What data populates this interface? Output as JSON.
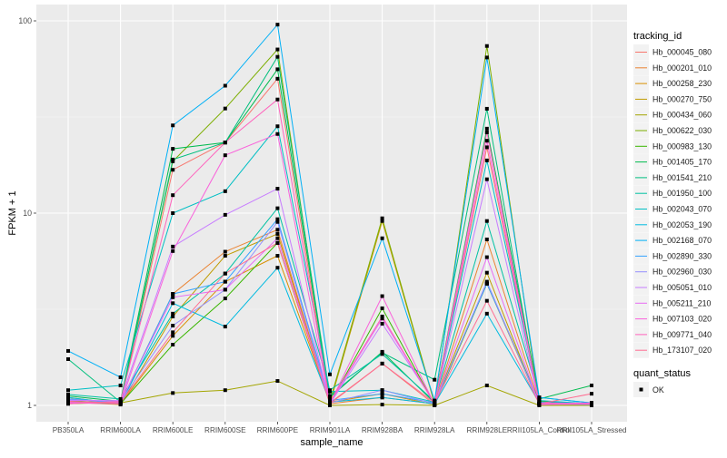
{
  "chart_data": {
    "type": "line",
    "xlabel": "sample_name",
    "ylabel": "FPKM + 1",
    "yscale": "log10",
    "ylim": [
      0.92,
      115
    ],
    "yticks": [
      1,
      10,
      100
    ],
    "ytick_labels": [
      "1",
      "10",
      "100"
    ],
    "grid": true,
    "legend_position": "right",
    "categories": [
      "PB350LA",
      "RRIM600LA",
      "RRIM600LE",
      "RRIM600SE",
      "RRIM600PE",
      "RRIM901LA",
      "RRIM928BA",
      "RRIM928LA",
      "RRIM928LE",
      "RRII105LA_Control",
      "RRII105LA_Stressed"
    ],
    "legend_title": "tracking_id",
    "series": [
      {
        "name": "Hb_000045_080",
        "color": "#F8766D",
        "values": [
          1.05,
          1.02,
          16.8,
          23.3,
          50,
          1.03,
          1.65,
          1.01,
          22,
          1.02,
          1.01
        ]
      },
      {
        "name": "Hb_000201_010",
        "color": "#EA8331",
        "values": [
          1.08,
          1.03,
          3.8,
          6.3,
          8.2,
          1.02,
          1.1,
          1.02,
          7.3,
          1.03,
          1.02
        ]
      },
      {
        "name": "Hb_000258_230",
        "color": "#D89000",
        "values": [
          1.1,
          1.02,
          2.3,
          4.4,
          6.0,
          1.04,
          1.15,
          1.01,
          4.3,
          1.02,
          1.01
        ]
      },
      {
        "name": "Hb_000270_750",
        "color": "#C09B00",
        "values": [
          1.04,
          1.01,
          2.9,
          6.0,
          7.8,
          1.02,
          9.1,
          1.02,
          4.9,
          1.01,
          1.02
        ]
      },
      {
        "name": "Hb_000434_060",
        "color": "#A3A500",
        "values": [
          1.05,
          1.03,
          1.16,
          1.2,
          1.34,
          1.0,
          1.01,
          1.0,
          1.27,
          1.0,
          1.0
        ]
      },
      {
        "name": "Hb_000622_030",
        "color": "#7CAE00",
        "values": [
          1.02,
          1.04,
          18.6,
          35,
          71,
          1.05,
          9.4,
          1.03,
          74,
          1.02,
          1.02
        ]
      },
      {
        "name": "Hb_000983_130",
        "color": "#39B600",
        "values": [
          1.06,
          1.02,
          2.07,
          3.6,
          7.0,
          1.02,
          3.2,
          1.01,
          4.3,
          1.05,
          1.02
        ]
      },
      {
        "name": "Hb_001405_170",
        "color": "#00BB4E",
        "values": [
          1.12,
          1.05,
          21.6,
          23.3,
          56,
          1.1,
          1.9,
          1.03,
          27.5,
          1.08,
          1.27
        ]
      },
      {
        "name": "Hb_001541_210",
        "color": "#00BF7D",
        "values": [
          1.74,
          1.04,
          19,
          23.3,
          65,
          1.12,
          1.88,
          1.36,
          34.9,
          1.02,
          1.02
        ]
      },
      {
        "name": "Hb_001950_100",
        "color": "#00C1A3",
        "values": [
          1.14,
          1.08,
          3.0,
          4.85,
          10.6,
          1.2,
          1.85,
          1.05,
          9.1,
          1.1,
          1.03
        ]
      },
      {
        "name": "Hb_002043_070",
        "color": "#00BFC4",
        "values": [
          1.2,
          1.27,
          10.0,
          13,
          28.3,
          1.18,
          1.2,
          1.04,
          18.8,
          1.06,
          1.02
        ]
      },
      {
        "name": "Hb_002053_190",
        "color": "#00BAE0",
        "values": [
          1.1,
          1.02,
          3.4,
          2.57,
          5.2,
          1.04,
          1.1,
          1.02,
          3.0,
          1.03,
          1.01
        ]
      },
      {
        "name": "Hb_002168_070",
        "color": "#00B0F6",
        "values": [
          1.92,
          1.4,
          28.6,
          46,
          95.6,
          1.45,
          7.4,
          1.06,
          64.5,
          1.1,
          1.03
        ]
      },
      {
        "name": "Hb_002890_330",
        "color": "#35A2FF",
        "values": [
          1.08,
          1.03,
          3.8,
          4.4,
          9.3,
          1.06,
          1.15,
          1.03,
          4.3,
          1.04,
          1.02
        ]
      },
      {
        "name": "Hb_002960_030",
        "color": "#9590FF",
        "values": [
          1.07,
          1.05,
          2.6,
          4.0,
          9.0,
          1.03,
          1.2,
          1.02,
          4.4,
          1.02,
          1.01
        ]
      },
      {
        "name": "Hb_005051_010",
        "color": "#C77CFF",
        "values": [
          1.06,
          1.06,
          6.7,
          9.8,
          13.4,
          1.02,
          2.66,
          1.03,
          15,
          1.02,
          1.02
        ]
      },
      {
        "name": "Hb_005211_210",
        "color": "#E76BF3",
        "values": [
          1.04,
          1.04,
          3.65,
          4.0,
          7.4,
          1.03,
          2.83,
          1.02,
          5.9,
          1.01,
          1.02
        ]
      },
      {
        "name": "Hb_007103_020",
        "color": "#FA62DB",
        "values": [
          1.03,
          1.02,
          6.35,
          20,
          25.8,
          1.02,
          3.7,
          1.01,
          23.8,
          1.02,
          1.03
        ]
      },
      {
        "name": "Hb_009771_040",
        "color": "#FF62BC",
        "values": [
          1.02,
          1.05,
          12.4,
          23.3,
          39,
          1.04,
          2.9,
          1.02,
          26.3,
          1.03,
          1.02
        ]
      },
      {
        "name": "Hb_173107_020",
        "color": "#FF6C91",
        "values": [
          1.05,
          1.03,
          2.4,
          4.85,
          7.0,
          1.02,
          1.65,
          1.03,
          3.5,
          1.02,
          1.15
        ]
      }
    ],
    "shape_legend": {
      "title": "quant_status",
      "items": [
        "OK"
      ]
    }
  }
}
